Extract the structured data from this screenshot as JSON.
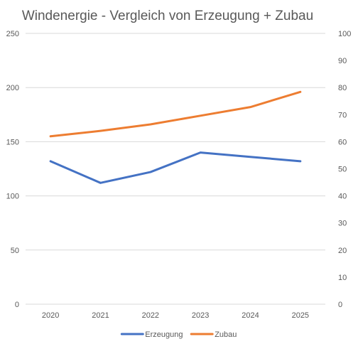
{
  "chart_data": {
    "type": "line",
    "title": "Windenergie - Vergleich von Erzeugung + Zubau",
    "xlabel": "",
    "ylabel": "",
    "categories": [
      "2020",
      "2021",
      "2022",
      "2023",
      "2024",
      "2025"
    ],
    "y_left": {
      "min": 0,
      "max": 250,
      "ticks": [
        "0",
        "50",
        "100",
        "150",
        "200",
        "250"
      ]
    },
    "y_right": {
      "min": 0,
      "max": 100,
      "ticks": [
        "0",
        "10",
        "20",
        "30",
        "40",
        "50",
        "60",
        "70",
        "80",
        "90",
        "100"
      ]
    },
    "grid": true,
    "legend_position": "bottom",
    "series": [
      {
        "name": "Erzeugung",
        "axis": "left",
        "color": "#4472c4",
        "values": [
          132,
          112,
          122,
          140,
          136,
          132
        ]
      },
      {
        "name": "Zubau",
        "axis": "left",
        "color": "#ed7d31",
        "values": [
          155,
          160,
          166,
          174,
          182,
          196
        ]
      }
    ]
  }
}
